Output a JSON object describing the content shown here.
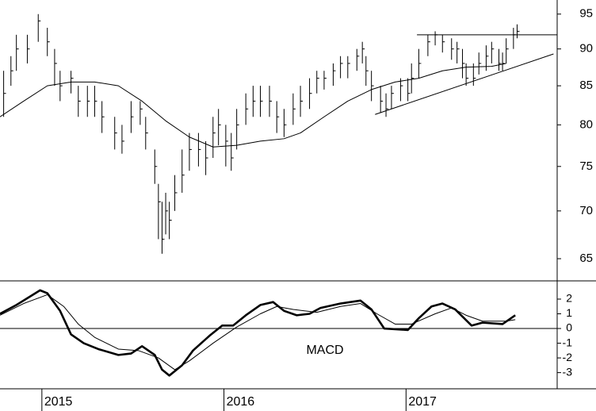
{
  "chart_data": [
    {
      "type": "ohlc",
      "log": true,
      "color": "#000000",
      "xlim": [
        2014.77,
        2017.83
      ],
      "ylim": [
        62.8,
        97.1
      ],
      "yticks": [
        65,
        70,
        75,
        80,
        85,
        90,
        95
      ],
      "x": [
        2014.79,
        2014.83,
        2014.86,
        2014.92,
        2014.98,
        2015.03,
        2015.07,
        2015.1,
        2015.16,
        2015.2,
        2015.25,
        2015.29,
        2015.33,
        2015.4,
        2015.44,
        2015.49,
        2015.54,
        2015.57,
        2015.62,
        2015.64,
        2015.66,
        2015.68,
        2015.7,
        2015.73,
        2015.77,
        2015.81,
        2015.86,
        2015.9,
        2015.94,
        2015.97,
        2016.01,
        2016.04,
        2016.07,
        2016.12,
        2016.16,
        2016.2,
        2016.25,
        2016.29,
        2016.33,
        2016.38,
        2016.42,
        2016.47,
        2016.51,
        2016.55,
        2016.6,
        2016.64,
        2016.68,
        2016.73,
        2016.76,
        2016.78,
        2016.81,
        2016.86,
        2016.89,
        2016.92,
        2016.97,
        2017.01,
        2017.03,
        2017.07,
        2017.12,
        2017.16,
        2017.2,
        2017.25,
        2017.28,
        2017.31,
        2017.33,
        2017.37,
        2017.4,
        2017.44,
        2017.47,
        2017.51,
        2017.53,
        2017.55,
        2017.59,
        2017.61
      ],
      "high": [
        87,
        89,
        92,
        92,
        95,
        93,
        90,
        87,
        87,
        85,
        85,
        85,
        83,
        81,
        80,
        83,
        83,
        81,
        77,
        73,
        71,
        72,
        71,
        74,
        77,
        79,
        79,
        78,
        81,
        82,
        80,
        79,
        82,
        84,
        85,
        85,
        85,
        83,
        82,
        84,
        85,
        86,
        87,
        87,
        88,
        89,
        89,
        90,
        91,
        89,
        87,
        85,
        84,
        85,
        86,
        86,
        88,
        90,
        92,
        92.5,
        92,
        91.5,
        91,
        90,
        88,
        88,
        89.5,
        90.5,
        91,
        90,
        89.5,
        91.5,
        93,
        93.5
      ],
      "low": [
        81,
        85,
        87,
        88,
        91,
        89,
        85,
        83,
        84,
        81,
        81,
        81,
        79,
        77,
        76.5,
        79,
        80,
        77,
        73,
        67,
        65.5,
        67.5,
        67,
        70,
        72,
        74.5,
        75,
        74,
        76,
        77.5,
        75,
        74.5,
        77,
        80,
        81,
        81,
        81,
        79,
        78.5,
        80,
        81,
        82,
        84,
        84.5,
        85,
        86,
        86,
        87,
        88,
        85,
        83,
        81.5,
        81,
        82,
        83,
        83,
        84,
        86,
        89,
        90.5,
        89.5,
        88.5,
        88,
        86,
        85,
        85,
        86.5,
        87,
        88,
        87,
        87,
        88,
        90,
        91.5
      ],
      "close": [
        84,
        87,
        90,
        90,
        94,
        91,
        88,
        85,
        86,
        83,
        83,
        83,
        81,
        79,
        78,
        81,
        82,
        79,
        75,
        71,
        67,
        70,
        69,
        72,
        74,
        77,
        77,
        76,
        79,
        80,
        78,
        76,
        80,
        82,
        83,
        83,
        83,
        81,
        80,
        82,
        83,
        84,
        86,
        86,
        87,
        88,
        88,
        89,
        90,
        87,
        85,
        83,
        82,
        84,
        85,
        84,
        86,
        88,
        91,
        92,
        91,
        90,
        90,
        88,
        86,
        86,
        88,
        89,
        90,
        88,
        88,
        90,
        92,
        92.5
      ],
      "series": [
        {
          "color": "#000000",
          "x": [
            2014.77,
            2014.9,
            2015.03,
            2015.16,
            2015.29,
            2015.42,
            2015.55,
            2015.68,
            2015.81,
            2015.94,
            2016.07,
            2016.2,
            2016.33,
            2016.42,
            2016.55,
            2016.68,
            2016.81,
            2016.94,
            2017.07,
            2017.2,
            2017.33,
            2017.47,
            2017.55
          ],
          "values": [
            81,
            83,
            85,
            85.5,
            85.5,
            85,
            83,
            80.5,
            78.5,
            77.3,
            77.5,
            78,
            78.3,
            79,
            81,
            83,
            84.5,
            85.5,
            86,
            87,
            87.5,
            87.6,
            88
          ]
        }
      ],
      "lines": [
        {
          "x": [
            2017.06,
            2017.83
          ],
          "values": [
            92,
            92
          ]
        },
        {
          "x": [
            2016.83,
            2017.81
          ],
          "values": [
            81.3,
            89.3
          ]
        }
      ]
    },
    {
      "type": "line",
      "annotation": "MACD",
      "zero_line": true,
      "xlim": [
        2014.77,
        2017.83
      ],
      "ylim": [
        -4.1,
        3.24
      ],
      "yticks": [
        -3,
        -2,
        -1,
        0,
        1,
        2
      ],
      "xticks": [
        2015,
        2016,
        2017
      ],
      "series": [
        {
          "color": "#000000",
          "width": 2.6,
          "x": [
            2014.77,
            2014.86,
            2014.99,
            2015.03,
            2015.1,
            2015.16,
            2015.23,
            2015.31,
            2015.42,
            2015.49,
            2015.55,
            2015.62,
            2015.66,
            2015.7,
            2015.77,
            2015.83,
            2015.92,
            2015.99,
            2016.05,
            2016.12,
            2016.2,
            2016.27,
            2016.33,
            2016.4,
            2016.47,
            2016.53,
            2016.64,
            2016.75,
            2016.81,
            2016.88,
            2017.01,
            2017.07,
            2017.14,
            2017.2,
            2017.27,
            2017.36,
            2017.42,
            2017.53,
            2017.6
          ],
          "values": [
            1.0,
            1.6,
            2.6,
            2.4,
            1.2,
            -0.4,
            -1.0,
            -1.4,
            -1.8,
            -1.7,
            -1.2,
            -1.8,
            -2.8,
            -3.2,
            -2.5,
            -1.5,
            -0.5,
            0.2,
            0.2,
            0.9,
            1.6,
            1.8,
            1.2,
            0.9,
            1.0,
            1.4,
            1.7,
            1.9,
            1.3,
            0,
            -0.1,
            0.7,
            1.5,
            1.7,
            1.3,
            0.2,
            0.4,
            0.3,
            0.9
          ]
        },
        {
          "color": "#000000",
          "width": 1,
          "x": [
            2014.77,
            2014.9,
            2015.03,
            2015.12,
            2015.2,
            2015.29,
            2015.42,
            2015.53,
            2015.64,
            2015.73,
            2015.81,
            2015.94,
            2016.07,
            2016.2,
            2016.29,
            2016.38,
            2016.51,
            2016.64,
            2016.75,
            2016.84,
            2016.94,
            2017.03,
            2017.16,
            2017.25,
            2017.33,
            2017.42,
            2017.55,
            2017.6
          ],
          "values": [
            0.9,
            1.7,
            2.3,
            1.5,
            0.3,
            -0.6,
            -1.4,
            -1.5,
            -2,
            -2.8,
            -2.2,
            -1.0,
            0.1,
            1.0,
            1.5,
            1.3,
            1.1,
            1.5,
            1.7,
            1.0,
            0.3,
            0.3,
            1.0,
            1.4,
            0.9,
            0.5,
            0.5,
            0.6
          ]
        }
      ]
    }
  ]
}
